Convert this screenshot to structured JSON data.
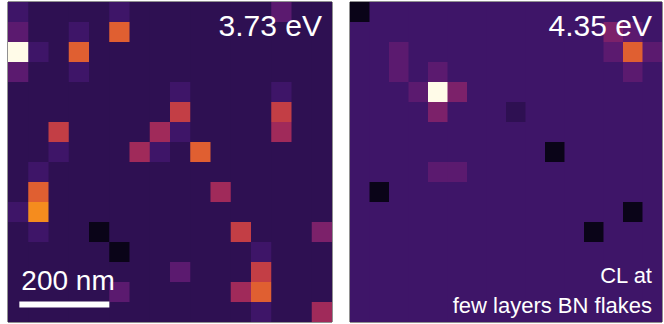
{
  "chart_data": [
    {
      "type": "heatmap",
      "title": "3.73 eV",
      "xlim": [
        0,
        720
      ],
      "ylim": [
        0,
        720
      ],
      "zlim": [
        0,
        10
      ],
      "tick_labels": false,
      "scale_bar": {
        "length": 200,
        "label": "200 nm"
      },
      "cells": [
        [
          2,
          1,
          1,
          1,
          1,
          2,
          1,
          1,
          1,
          1,
          1,
          1,
          1,
          3,
          1,
          1
        ],
        [
          3,
          1,
          1,
          2,
          1,
          7,
          1,
          1,
          1,
          1,
          1,
          1,
          1,
          1,
          1,
          1
        ],
        [
          10,
          2,
          1,
          7,
          1,
          1,
          1,
          1,
          1,
          1,
          1,
          1,
          1,
          1,
          1,
          1
        ],
        [
          3,
          1,
          1,
          2,
          1,
          1,
          1,
          1,
          1,
          1,
          1,
          1,
          1,
          1,
          1,
          1
        ],
        [
          1,
          1,
          1,
          1,
          1,
          1,
          1,
          1,
          2,
          1,
          1,
          1,
          1,
          2,
          1,
          1
        ],
        [
          1,
          1,
          1,
          1,
          1,
          1,
          1,
          1,
          6,
          1,
          1,
          1,
          1,
          6,
          1,
          1
        ],
        [
          1,
          1,
          6,
          1,
          1,
          1,
          1,
          5,
          2,
          1,
          1,
          1,
          1,
          5,
          1,
          1
        ],
        [
          1,
          1,
          2,
          1,
          1,
          1,
          5,
          2,
          1,
          7,
          1,
          1,
          1,
          1,
          1,
          1
        ],
        [
          1,
          2,
          1,
          1,
          1,
          1,
          1,
          1,
          1,
          1,
          1,
          1,
          1,
          1,
          1,
          1
        ],
        [
          1,
          7,
          1,
          1,
          1,
          1,
          1,
          1,
          1,
          1,
          5,
          1,
          1,
          1,
          1,
          1
        ],
        [
          2,
          8,
          1,
          1,
          1,
          1,
          1,
          1,
          1,
          1,
          1,
          1,
          1,
          1,
          1,
          1
        ],
        [
          1,
          2,
          1,
          1,
          0,
          1,
          1,
          1,
          1,
          1,
          1,
          6,
          1,
          1,
          1,
          4
        ],
        [
          1,
          1,
          1,
          1,
          1,
          0,
          1,
          1,
          1,
          1,
          1,
          1,
          2,
          1,
          1,
          1
        ],
        [
          1,
          1,
          1,
          1,
          1,
          1,
          1,
          1,
          3,
          1,
          1,
          1,
          6,
          1,
          1,
          1
        ],
        [
          1,
          1,
          1,
          1,
          1,
          3,
          1,
          1,
          1,
          1,
          1,
          5,
          7,
          1,
          1,
          1
        ],
        [
          1,
          1,
          1,
          1,
          1,
          1,
          1,
          1,
          1,
          1,
          1,
          1,
          2,
          1,
          1,
          5
        ]
      ]
    },
    {
      "type": "heatmap",
      "title": "4.35 eV",
      "xlim": [
        0,
        720
      ],
      "ylim": [
        0,
        720
      ],
      "zlim": [
        0,
        10
      ],
      "tick_labels": false,
      "annotations": [
        "CL at",
        "few layers BN flakes"
      ],
      "cells": [
        [
          0,
          2,
          2,
          2,
          2,
          2,
          2,
          2,
          2,
          2,
          2,
          2,
          2,
          2,
          2,
          2
        ],
        [
          2,
          2,
          2,
          2,
          2,
          2,
          2,
          2,
          2,
          2,
          2,
          2,
          2,
          4,
          3,
          2
        ],
        [
          2,
          2,
          3,
          2,
          2,
          2,
          2,
          2,
          2,
          2,
          2,
          2,
          2,
          3,
          7,
          3
        ],
        [
          2,
          2,
          3,
          2,
          3,
          2,
          2,
          2,
          2,
          2,
          2,
          2,
          2,
          2,
          3,
          2
        ],
        [
          2,
          2,
          2,
          3,
          10,
          4,
          2,
          2,
          2,
          2,
          2,
          2,
          2,
          2,
          2,
          2
        ],
        [
          2,
          2,
          2,
          2,
          4,
          2,
          2,
          2,
          1,
          2,
          2,
          2,
          2,
          2,
          2,
          2
        ],
        [
          2,
          2,
          2,
          2,
          2,
          2,
          2,
          2,
          2,
          2,
          2,
          2,
          2,
          2,
          2,
          2
        ],
        [
          2,
          2,
          2,
          2,
          2,
          2,
          2,
          2,
          2,
          2,
          0,
          2,
          2,
          2,
          2,
          2
        ],
        [
          2,
          2,
          2,
          2,
          3,
          3,
          2,
          2,
          2,
          2,
          2,
          2,
          2,
          2,
          2,
          2
        ],
        [
          2,
          0,
          2,
          2,
          2,
          2,
          2,
          2,
          2,
          2,
          2,
          2,
          2,
          2,
          2,
          2
        ],
        [
          2,
          2,
          2,
          2,
          2,
          2,
          2,
          2,
          2,
          2,
          2,
          2,
          2,
          2,
          0,
          2
        ],
        [
          2,
          2,
          2,
          2,
          2,
          2,
          2,
          2,
          2,
          2,
          2,
          2,
          0,
          2,
          2,
          2
        ],
        [
          2,
          2,
          2,
          2,
          2,
          2,
          2,
          2,
          2,
          2,
          2,
          2,
          2,
          2,
          2,
          2
        ],
        [
          2,
          2,
          2,
          2,
          2,
          2,
          2,
          2,
          2,
          2,
          2,
          2,
          2,
          2,
          2,
          2
        ],
        [
          2,
          2,
          2,
          2,
          2,
          2,
          2,
          2,
          2,
          2,
          2,
          2,
          2,
          2,
          2,
          2
        ],
        [
          2,
          2,
          2,
          2,
          2,
          2,
          2,
          2,
          2,
          2,
          2,
          2,
          2,
          2,
          2,
          2
        ]
      ]
    }
  ]
}
